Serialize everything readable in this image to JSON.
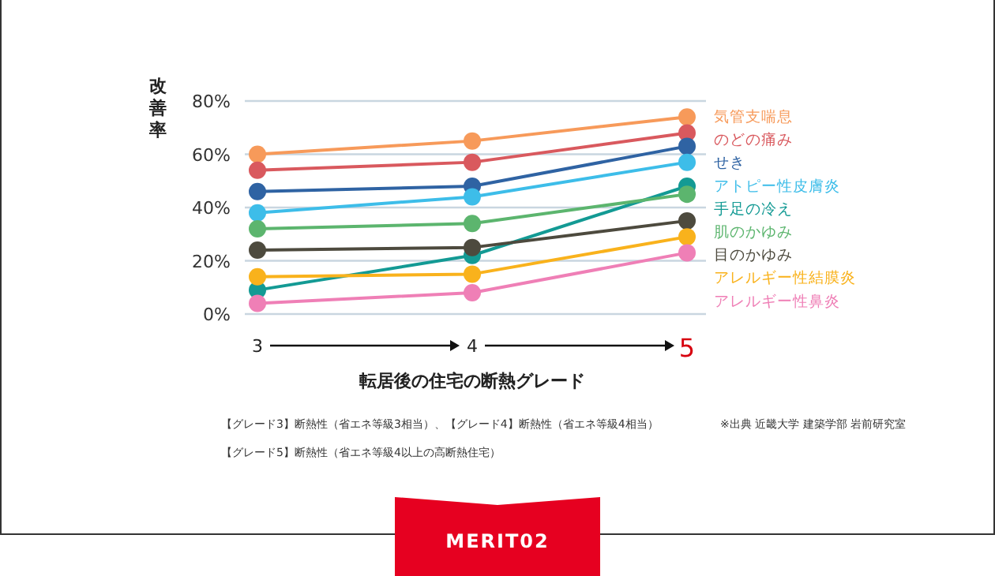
{
  "chart_data": {
    "type": "line",
    "xlabel": "転居後の住宅の断熱グレード",
    "ylabel": "改善率",
    "categories": [
      "3",
      "4",
      "5"
    ],
    "ylim": [
      0,
      80
    ],
    "yticks": [
      {
        "value": 0,
        "label": "0%"
      },
      {
        "value": 20,
        "label": "20%"
      },
      {
        "value": 40,
        "label": "40%"
      },
      {
        "value": 60,
        "label": "60%"
      },
      {
        "value": 80,
        "label": "80%"
      }
    ],
    "grid": "y",
    "legend": "right",
    "marker": "circle",
    "line_style": "solid",
    "series": [
      {
        "name": "気管支喘息",
        "color": "#f79a5a",
        "values": [
          60,
          65,
          74
        ]
      },
      {
        "name": "のどの痛み",
        "color": "#d9595e",
        "values": [
          54,
          57,
          68
        ]
      },
      {
        "name": "せき",
        "color": "#2f63a3",
        "values": [
          46,
          48,
          63
        ]
      },
      {
        "name": "アトピー性皮膚炎",
        "color": "#3dbde9",
        "values": [
          38,
          44,
          57
        ]
      },
      {
        "name": "手足の冷え",
        "color": "#139a94",
        "values": [
          9,
          22,
          48
        ]
      },
      {
        "name": "肌のかゆみ",
        "color": "#5cb56e",
        "values": [
          32,
          34,
          45
        ]
      },
      {
        "name": "目のかゆみ",
        "color": "#4d4a3e",
        "values": [
          24,
          25,
          35
        ]
      },
      {
        "name": "アレルギー性結膜炎",
        "color": "#f9b21c",
        "values": [
          14,
          15,
          29
        ]
      },
      {
        "name": "アレルギー性鼻炎",
        "color": "#ef7fb6",
        "values": [
          4,
          8,
          23
        ]
      }
    ],
    "annotations": [
      "【グレード3】断熱性（省エネ等級3相当）、【グレード4】断熱性（省エネ等級4相当）",
      "※出典 近畿大学 建築学部 岩前研究室",
      "【グレード5】断熱性（省エネ等級4以上の高断熱住宅）",
      "MERIT02"
    ]
  }
}
